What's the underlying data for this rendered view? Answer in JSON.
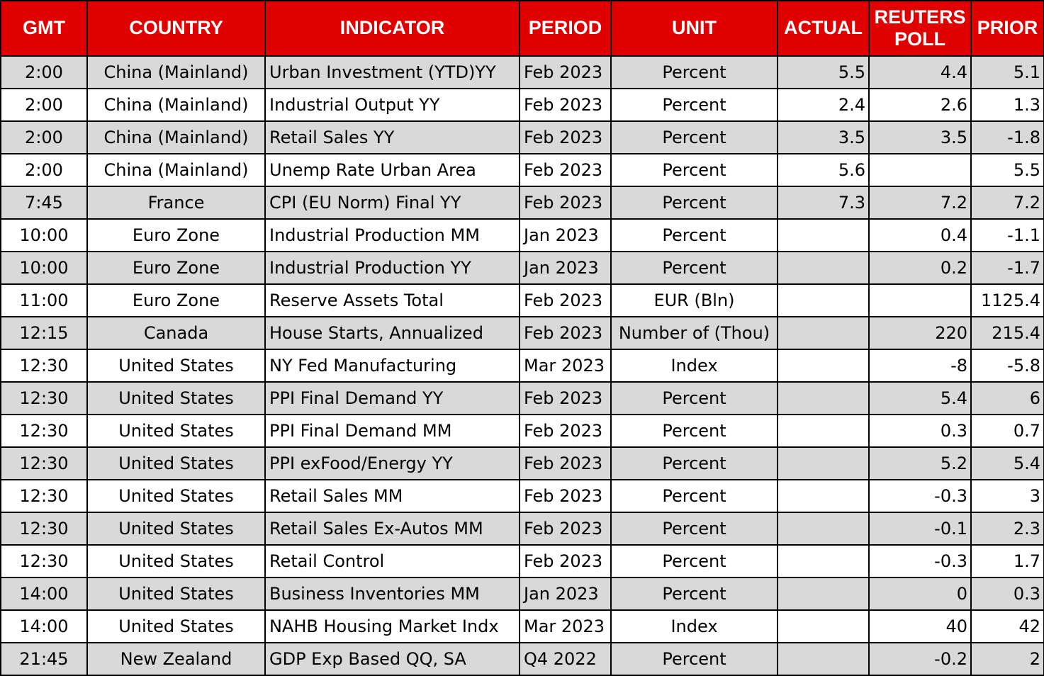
{
  "colors": {
    "header_bg": "#e00000",
    "header_text": "#ffffff",
    "row_shaded": "#d9d9d9",
    "row_plain": "#ffffff",
    "grid": "#000000"
  },
  "headers": {
    "gmt": "GMT",
    "country": "COUNTRY",
    "indicator": "INDICATOR",
    "period": "PERIOD",
    "unit": "UNIT",
    "actual": "ACTUAL",
    "poll_line1": "REUTERS",
    "poll_line2": "POLL",
    "prior": "PRIOR"
  },
  "rows": [
    {
      "gmt": "2:00",
      "country": "China (Mainland)",
      "indicator": "Urban Investment (YTD)YY",
      "period": "Feb 2023",
      "unit": "Percent",
      "actual": "5.5",
      "poll": "4.4",
      "prior": "5.1"
    },
    {
      "gmt": "2:00",
      "country": "China (Mainland)",
      "indicator": "Industrial Output YY",
      "period": "Feb 2023",
      "unit": "Percent",
      "actual": "2.4",
      "poll": "2.6",
      "prior": "1.3"
    },
    {
      "gmt": "2:00",
      "country": "China (Mainland)",
      "indicator": "Retail Sales YY",
      "period": "Feb 2023",
      "unit": "Percent",
      "actual": "3.5",
      "poll": "3.5",
      "prior": "-1.8"
    },
    {
      "gmt": "2:00",
      "country": "China (Mainland)",
      "indicator": "Unemp Rate Urban Area",
      "period": "Feb 2023",
      "unit": "Percent",
      "actual": "5.6",
      "poll": "",
      "prior": "5.5"
    },
    {
      "gmt": "7:45",
      "country": "France",
      "indicator": "CPI (EU Norm) Final YY",
      "period": "Feb 2023",
      "unit": "Percent",
      "actual": "7.3",
      "poll": "7.2",
      "prior": "7.2"
    },
    {
      "gmt": "10:00",
      "country": "Euro Zone",
      "indicator": "Industrial Production MM",
      "period": "Jan 2023",
      "unit": "Percent",
      "actual": "",
      "poll": "0.4",
      "prior": "-1.1"
    },
    {
      "gmt": "10:00",
      "country": "Euro Zone",
      "indicator": "Industrial Production YY",
      "period": "Jan 2023",
      "unit": "Percent",
      "actual": "",
      "poll": "0.2",
      "prior": "-1.7"
    },
    {
      "gmt": "11:00",
      "country": "Euro Zone",
      "indicator": "Reserve Assets Total",
      "period": "Feb 2023",
      "unit": "EUR (Bln)",
      "actual": "",
      "poll": "",
      "prior": "1125.4"
    },
    {
      "gmt": "12:15",
      "country": "Canada",
      "indicator": "House Starts, Annualized",
      "period": "Feb 2023",
      "unit": "Number of (Thou)",
      "actual": "",
      "poll": "220",
      "prior": "215.4"
    },
    {
      "gmt": "12:30",
      "country": "United States",
      "indicator": "NY Fed Manufacturing",
      "period": "Mar 2023",
      "unit": "Index",
      "actual": "",
      "poll": "-8",
      "prior": "-5.8"
    },
    {
      "gmt": "12:30",
      "country": "United States",
      "indicator": "PPI Final Demand YY",
      "period": "Feb 2023",
      "unit": "Percent",
      "actual": "",
      "poll": "5.4",
      "prior": "6"
    },
    {
      "gmt": "12:30",
      "country": "United States",
      "indicator": "PPI Final Demand MM",
      "period": "Feb 2023",
      "unit": "Percent",
      "actual": "",
      "poll": "0.3",
      "prior": "0.7"
    },
    {
      "gmt": "12:30",
      "country": "United States",
      "indicator": "PPI exFood/Energy YY",
      "period": "Feb 2023",
      "unit": "Percent",
      "actual": "",
      "poll": "5.2",
      "prior": "5.4"
    },
    {
      "gmt": "12:30",
      "country": "United States",
      "indicator": "Retail Sales MM",
      "period": "Feb 2023",
      "unit": "Percent",
      "actual": "",
      "poll": "-0.3",
      "prior": "3"
    },
    {
      "gmt": "12:30",
      "country": "United States",
      "indicator": "Retail Sales Ex-Autos MM",
      "period": "Feb 2023",
      "unit": "Percent",
      "actual": "",
      "poll": "-0.1",
      "prior": "2.3"
    },
    {
      "gmt": "12:30",
      "country": "United States",
      "indicator": "Retail Control",
      "period": "Feb 2023",
      "unit": "Percent",
      "actual": "",
      "poll": "-0.3",
      "prior": "1.7"
    },
    {
      "gmt": "14:00",
      "country": "United States",
      "indicator": "Business Inventories MM",
      "period": "Jan 2023",
      "unit": "Percent",
      "actual": "",
      "poll": "0",
      "prior": "0.3"
    },
    {
      "gmt": "14:00",
      "country": "United States",
      "indicator": "NAHB Housing Market Indx",
      "period": "Mar 2023",
      "unit": "Index",
      "actual": "",
      "poll": "40",
      "prior": "42"
    },
    {
      "gmt": "21:45",
      "country": "New Zealand",
      "indicator": "GDP Exp Based QQ, SA",
      "period": "Q4 2022",
      "unit": "Percent",
      "actual": "",
      "poll": "-0.2",
      "prior": "2"
    }
  ]
}
